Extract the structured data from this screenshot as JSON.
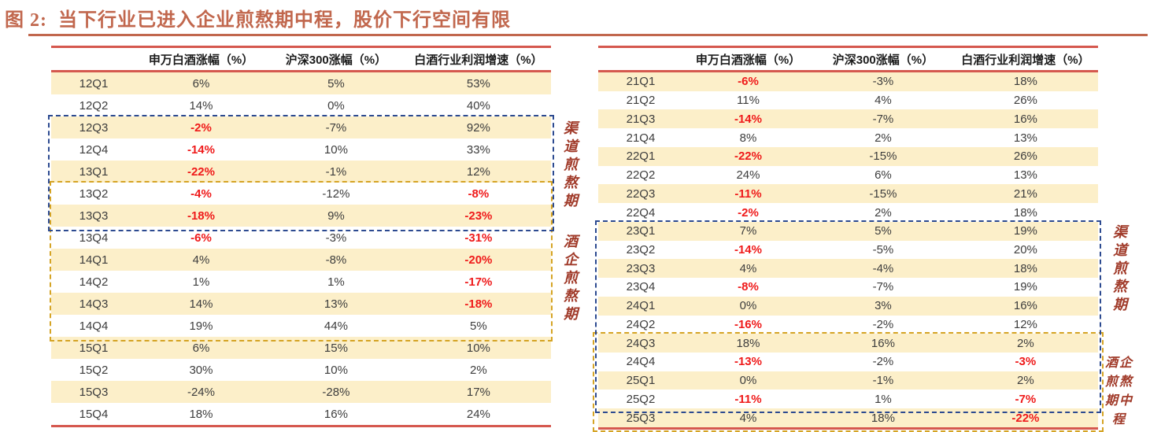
{
  "figure_title": {
    "label": "图 2:",
    "text": "当下行业已进入企业煎熬期中程，股价下行空间有限"
  },
  "colors": {
    "title": "#C1674D",
    "table_rule_red": "#D5584E",
    "row_highlight_yellow": "#FCEFC9",
    "negative_red": "#EF1A1A",
    "text_dark": "#3D3D3D",
    "box_blue": "#2C4A90",
    "box_gold": "#D5A425",
    "annotation_red": "#A03A29"
  },
  "chart_data": {
    "type": "table",
    "title": "图 2: 当下行业已进入企业煎熬期中程，股价下行空间有限",
    "columns": [
      "",
      "申万白酒涨幅（%）",
      "沪深300涨幅（%）",
      "白酒行业利润增速（%）"
    ],
    "tables": [
      {
        "id": "left",
        "rows": [
          {
            "q": "12Q1",
            "v": [
              "6%",
              "5%",
              "53%"
            ],
            "red": [
              0,
              0,
              0
            ]
          },
          {
            "q": "12Q2",
            "v": [
              "14%",
              "0%",
              "40%"
            ],
            "red": [
              0,
              0,
              0
            ]
          },
          {
            "q": "12Q3",
            "v": [
              "-2%",
              "-7%",
              "92%"
            ],
            "red": [
              1,
              0,
              0
            ]
          },
          {
            "q": "12Q4",
            "v": [
              "-14%",
              "10%",
              "33%"
            ],
            "red": [
              1,
              0,
              0
            ]
          },
          {
            "q": "13Q1",
            "v": [
              "-22%",
              "-1%",
              "12%"
            ],
            "red": [
              1,
              0,
              0
            ]
          },
          {
            "q": "13Q2",
            "v": [
              "-4%",
              "-12%",
              "-8%"
            ],
            "red": [
              1,
              0,
              1
            ]
          },
          {
            "q": "13Q3",
            "v": [
              "-18%",
              "9%",
              "-23%"
            ],
            "red": [
              1,
              0,
              1
            ]
          },
          {
            "q": "13Q4",
            "v": [
              "-6%",
              "-3%",
              "-31%"
            ],
            "red": [
              1,
              0,
              1
            ]
          },
          {
            "q": "14Q1",
            "v": [
              "4%",
              "-8%",
              "-20%"
            ],
            "red": [
              0,
              0,
              1
            ]
          },
          {
            "q": "14Q2",
            "v": [
              "1%",
              "1%",
              "-17%"
            ],
            "red": [
              0,
              0,
              1
            ]
          },
          {
            "q": "14Q3",
            "v": [
              "14%",
              "13%",
              "-18%"
            ],
            "red": [
              0,
              0,
              1
            ]
          },
          {
            "q": "14Q4",
            "v": [
              "19%",
              "44%",
              "5%"
            ],
            "red": [
              0,
              0,
              0
            ]
          },
          {
            "q": "15Q1",
            "v": [
              "6%",
              "15%",
              "10%"
            ],
            "red": [
              0,
              0,
              0
            ]
          },
          {
            "q": "15Q2",
            "v": [
              "30%",
              "10%",
              "2%"
            ],
            "red": [
              0,
              0,
              0
            ]
          },
          {
            "q": "15Q3",
            "v": [
              "-24%",
              "-28%",
              "17%"
            ],
            "red": [
              0,
              0,
              0
            ]
          },
          {
            "q": "15Q4",
            "v": [
              "18%",
              "16%",
              "24%"
            ],
            "red": [
              0,
              0,
              0
            ]
          }
        ],
        "boxes": [
          {
            "style": "blue",
            "from": "12Q3",
            "to": "13Q3",
            "label": "渠道煎熬期"
          },
          {
            "style": "gold",
            "from": "13Q2",
            "to": "14Q4",
            "label": "酒企煎熬期"
          }
        ]
      },
      {
        "id": "right",
        "rows": [
          {
            "q": "21Q1",
            "v": [
              "-6%",
              "-3%",
              "18%"
            ],
            "red": [
              1,
              0,
              0
            ]
          },
          {
            "q": "21Q2",
            "v": [
              "11%",
              "4%",
              "26%"
            ],
            "red": [
              0,
              0,
              0
            ]
          },
          {
            "q": "21Q3",
            "v": [
              "-14%",
              "-7%",
              "16%"
            ],
            "red": [
              1,
              0,
              0
            ]
          },
          {
            "q": "21Q4",
            "v": [
              "8%",
              "2%",
              "13%"
            ],
            "red": [
              0,
              0,
              0
            ]
          },
          {
            "q": "22Q1",
            "v": [
              "-22%",
              "-15%",
              "26%"
            ],
            "red": [
              1,
              0,
              0
            ]
          },
          {
            "q": "22Q2",
            "v": [
              "24%",
              "6%",
              "13%"
            ],
            "red": [
              0,
              0,
              0
            ]
          },
          {
            "q": "22Q3",
            "v": [
              "-11%",
              "-15%",
              "21%"
            ],
            "red": [
              1,
              0,
              0
            ]
          },
          {
            "q": "22Q4",
            "v": [
              "-2%",
              "2%",
              "18%"
            ],
            "red": [
              1,
              0,
              0
            ]
          },
          {
            "q": "23Q1",
            "v": [
              "7%",
              "5%",
              "19%"
            ],
            "red": [
              0,
              0,
              0
            ]
          },
          {
            "q": "23Q2",
            "v": [
              "-14%",
              "-5%",
              "20%"
            ],
            "red": [
              1,
              0,
              0
            ]
          },
          {
            "q": "23Q3",
            "v": [
              "4%",
              "-4%",
              "18%"
            ],
            "red": [
              0,
              0,
              0
            ]
          },
          {
            "q": "23Q4",
            "v": [
              "-8%",
              "-7%",
              "19%"
            ],
            "red": [
              1,
              0,
              0
            ]
          },
          {
            "q": "24Q1",
            "v": [
              "0%",
              "3%",
              "16%"
            ],
            "red": [
              0,
              0,
              0
            ]
          },
          {
            "q": "24Q2",
            "v": [
              "-16%",
              "-2%",
              "12%"
            ],
            "red": [
              1,
              0,
              0
            ]
          },
          {
            "q": "24Q3",
            "v": [
              "18%",
              "16%",
              "2%"
            ],
            "red": [
              0,
              0,
              0
            ]
          },
          {
            "q": "24Q4",
            "v": [
              "-13%",
              "-2%",
              "-3%"
            ],
            "red": [
              1,
              0,
              1
            ]
          },
          {
            "q": "25Q1",
            "v": [
              "0%",
              "-1%",
              "2%"
            ],
            "red": [
              0,
              0,
              0
            ]
          },
          {
            "q": "25Q2",
            "v": [
              "-11%",
              "1%",
              "-7%"
            ],
            "red": [
              1,
              0,
              1
            ]
          },
          {
            "q": "25Q3",
            "v": [
              "4%",
              "18%",
              "-22%"
            ],
            "red": [
              0,
              0,
              1
            ]
          }
        ],
        "boxes": [
          {
            "style": "blue",
            "from": "23Q1",
            "to": "25Q2",
            "label": "渠道煎熬期"
          },
          {
            "style": "gold",
            "from": "24Q3",
            "to": "25Q3",
            "label": "酒企煎熬期中程"
          }
        ]
      }
    ],
    "annotations": [
      {
        "table": "left",
        "label": "渠道煎熬期"
      },
      {
        "table": "left",
        "label": "酒企煎熬期"
      },
      {
        "table": "right",
        "label": "渠道煎熬期"
      },
      {
        "table": "right",
        "label": "酒企煎熬期中程"
      }
    ]
  }
}
